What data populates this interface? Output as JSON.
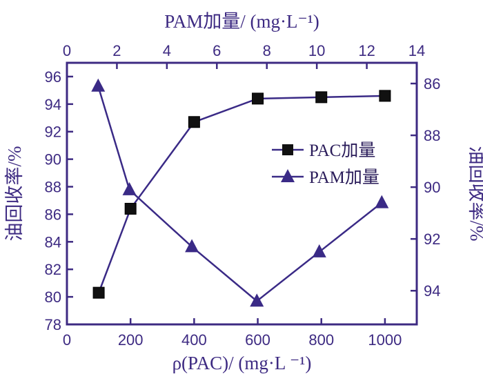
{
  "chart_data": {
    "type": "line",
    "x_bottom": {
      "label": "ρ(PAC)/ (mg·L ⁻¹)",
      "range": [
        0,
        1100
      ],
      "ticks": [
        0,
        200,
        400,
        600,
        800,
        1000
      ]
    },
    "x_top": {
      "label": "PAM加量/ (mg·L⁻¹)",
      "range": [
        0,
        14
      ],
      "ticks": [
        0,
        2,
        4,
        6,
        8,
        10,
        12,
        14
      ]
    },
    "y_left": {
      "label": "油回收率/%",
      "range": [
        78,
        97
      ],
      "ticks": [
        78,
        80,
        82,
        84,
        86,
        88,
        90,
        92,
        94,
        96
      ]
    },
    "y_right": {
      "label": "油回收率/%",
      "range": [
        95.3,
        85.2
      ],
      "ticks": [
        86,
        88,
        90,
        92,
        94
      ]
    },
    "series": [
      {
        "name": "PAC加量",
        "marker": "square",
        "x_axis": "bottom",
        "y_axis": "left",
        "x": [
          100,
          200,
          400,
          600,
          800,
          1000
        ],
        "y": [
          80.3,
          86.4,
          92.7,
          94.4,
          94.5,
          94.6
        ]
      },
      {
        "name": "PAM加量",
        "marker": "triangle",
        "x_axis": "top",
        "y_axis": "right",
        "x": [
          1.25,
          2.5,
          5,
          7.6,
          10.1,
          12.6
        ],
        "y": [
          86.1,
          90.1,
          92.3,
          94.4,
          92.5,
          90.6
        ]
      }
    ],
    "legend_position": "center-right",
    "grid": false
  },
  "colors": {
    "axis": "#3d2a82",
    "line": "#3a2a86",
    "marker_square": "#111111",
    "marker_triangle": "#3a2a86",
    "background": "#ffffff"
  }
}
